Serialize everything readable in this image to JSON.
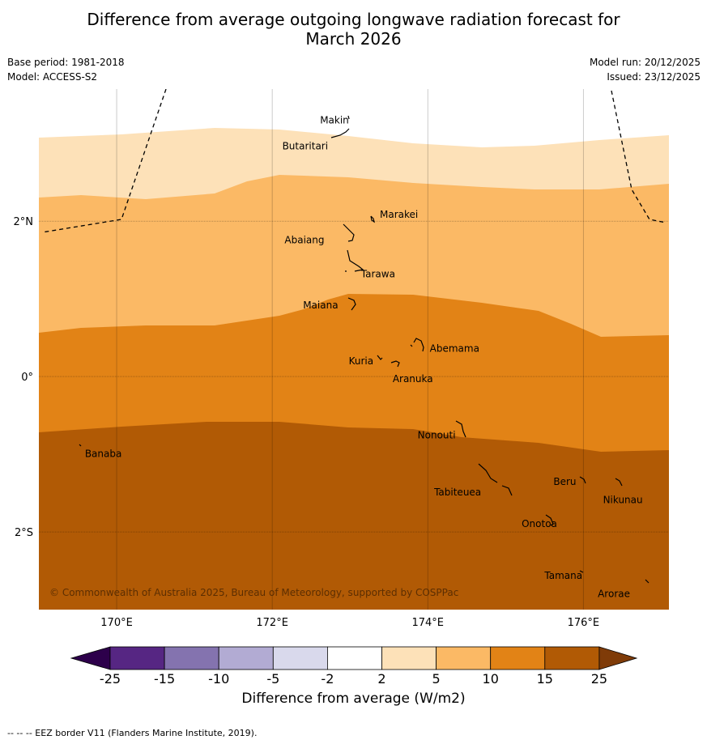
{
  "header": {
    "title_line1": "Difference from average outgoing longwave radiation forecast for",
    "title_line2": "March 2026",
    "base_period": "Base period: 1981-2018",
    "model": "Model: ACCESS-S2",
    "model_run": "Model run: 20/12/2025",
    "issued": "Issued: 23/12/2025"
  },
  "map": {
    "lon_range": [
      169,
      177.1
    ],
    "lat_range": [
      -3,
      3.7
    ],
    "lon_ticks": [
      {
        "value": 170,
        "label": "170°E"
      },
      {
        "value": 172,
        "label": "172°E"
      },
      {
        "value": 174,
        "label": "174°E"
      },
      {
        "value": 176,
        "label": "176°E"
      }
    ],
    "lat_ticks": [
      {
        "value": 2,
        "label": "2°N"
      },
      {
        "value": 0,
        "label": "0°"
      },
      {
        "value": -2,
        "label": "2°S"
      }
    ],
    "copyright": "© Commonwealth of Australia 2025, Bureau of Meteorology, supported by COSPPac",
    "islands": [
      {
        "name": "Makin",
        "lon": 173.0,
        "lat": 3.3
      },
      {
        "name": "Butaritari",
        "lon": 172.9,
        "lat": 3.05
      },
      {
        "name": "Marakei",
        "lon": 173.3,
        "lat": 2.0
      },
      {
        "name": "Abaiang",
        "lon": 172.95,
        "lat": 1.8
      },
      {
        "name": "Tarawa",
        "lon": 173.1,
        "lat": 1.4
      },
      {
        "name": "Maiana",
        "lon": 173.0,
        "lat": 0.95
      },
      {
        "name": "Abemama",
        "lon": 173.9,
        "lat": 0.4
      },
      {
        "name": "Kuria",
        "lon": 173.4,
        "lat": 0.22
      },
      {
        "name": "Aranuka",
        "lon": 173.6,
        "lat": 0.17
      },
      {
        "name": "Nonouti",
        "lon": 174.4,
        "lat": -0.65
      },
      {
        "name": "Banaba",
        "lon": 169.55,
        "lat": -0.88
      },
      {
        "name": "Tabiteuea",
        "lon": 174.8,
        "lat": -1.3
      },
      {
        "name": "Beru",
        "lon": 176.0,
        "lat": -1.3
      },
      {
        "name": "Nikunau",
        "lon": 176.45,
        "lat": -1.35
      },
      {
        "name": "Onotoa",
        "lon": 175.55,
        "lat": -1.8
      },
      {
        "name": "Tamana",
        "lon": 175.98,
        "lat": -2.5
      },
      {
        "name": "Arorae",
        "lon": 176.82,
        "lat": -2.65
      }
    ],
    "zones": [
      {
        "level": "2 to 5",
        "color": "#fde1b8"
      },
      {
        "level": "5 to 10",
        "color": "#fbb965"
      },
      {
        "level": "10 to 15",
        "color": "#e28316"
      },
      {
        "level": "15 to 25",
        "color": "#b15a05"
      }
    ],
    "eez_legend": "--  --  -- EEZ border V11 (Flanders Marine Institute, 2019)."
  },
  "colorbar": {
    "title": "Difference from average (W/m2)",
    "ticks": [
      "-25",
      "-15",
      "-10",
      "-5",
      "-2",
      "2",
      "5",
      "10",
      "15",
      "25"
    ],
    "colors": [
      "#562683",
      "#8473af",
      "#b2abd3",
      "#d9d9ec",
      "#ffffff",
      "#fde1b8",
      "#fbb965",
      "#e28316",
      "#b15a05"
    ],
    "under_color": "#2d004b",
    "over_color": "#7f3b08"
  }
}
